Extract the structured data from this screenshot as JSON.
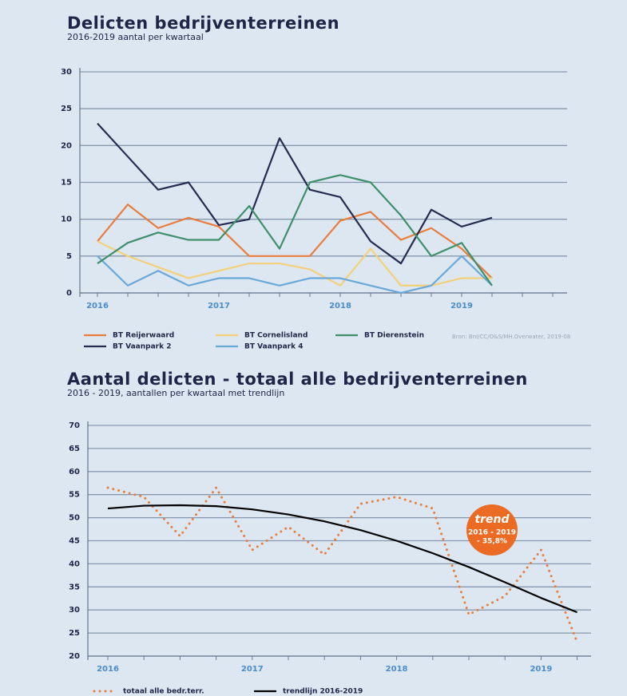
{
  "chart_data": [
    {
      "type": "line",
      "title": "Delicten bedrijventerreinen",
      "subtitle": "2016-2019 aantal per kwartaal",
      "source": "Bron: BnI/CC/O&S/MH.Overwater, 2019-08",
      "categories": [
        "2016",
        null,
        null,
        null,
        "2017",
        null,
        null,
        null,
        "2018",
        null,
        null,
        null,
        "2019",
        null,
        null,
        null
      ],
      "ylim": [
        0,
        30
      ],
      "yticks": [
        0,
        5,
        10,
        15,
        20,
        25,
        30
      ],
      "grid": true,
      "series": [
        {
          "name": "BT Reijerwaard",
          "color": "#e87d3e",
          "values": [
            7,
            12,
            8.8,
            10.2,
            9,
            5,
            5,
            5,
            9.8,
            11,
            7.2,
            8.8,
            6,
            2,
            null,
            null
          ]
        },
        {
          "name": "BT Vaanpark 2",
          "color": "#262b50",
          "values": [
            23,
            18.5,
            14,
            15,
            9.2,
            10,
            21,
            14,
            13,
            7,
            4,
            11.3,
            9,
            10.2,
            null,
            null
          ]
        },
        {
          "name": "BT Cornelisland",
          "color": "#f3d07a",
          "values": [
            7,
            5,
            3.5,
            2,
            3,
            4,
            4,
            3.2,
            1,
            6,
            1,
            1,
            2,
            2,
            null,
            null
          ]
        },
        {
          "name": "BT Vaanpark 4",
          "color": "#6aa8d8",
          "values": [
            5,
            1,
            3,
            1,
            2,
            2,
            1,
            2,
            2,
            1,
            0,
            1,
            5,
            1,
            null,
            null
          ]
        },
        {
          "name": "BT Dierenstein",
          "color": "#3e8f6a",
          "values": [
            4,
            6.8,
            8.2,
            7.2,
            7.2,
            11.8,
            6,
            15,
            16,
            15,
            10.5,
            5,
            6.8,
            1,
            null,
            null
          ]
        }
      ]
    },
    {
      "type": "line",
      "title": "Aantal delicten - totaal alle bedrijventerreinen",
      "subtitle": "2016 - 2019, aantallen per kwartaal met trendlijn",
      "categories": [
        "2016",
        null,
        null,
        null,
        "2017",
        null,
        null,
        null,
        "2018",
        null,
        null,
        null,
        "2019",
        null
      ],
      "ylim": [
        20,
        70
      ],
      "yticks": [
        20,
        25,
        30,
        35,
        40,
        45,
        50,
        55,
        60,
        65,
        70
      ],
      "grid": true,
      "annotation": [
        "trend",
        "2016 - 2019",
        "- 35,8%"
      ],
      "series": [
        {
          "name": "totaal alle bedr.terr.",
          "color": "#e87d3e",
          "dotted": true,
          "values": [
            56.5,
            54.5,
            46,
            56.5,
            43,
            48,
            42,
            53,
            54.5,
            52,
            29,
            33,
            43,
            23
          ]
        },
        {
          "name": "trendlijn 2016-2019",
          "color": "#000000",
          "values": [
            52,
            52.6,
            52.7,
            52.5,
            51.8,
            50.7,
            49.2,
            47.3,
            45,
            42.3,
            39.3,
            36,
            32.6,
            29.5
          ]
        }
      ]
    }
  ]
}
